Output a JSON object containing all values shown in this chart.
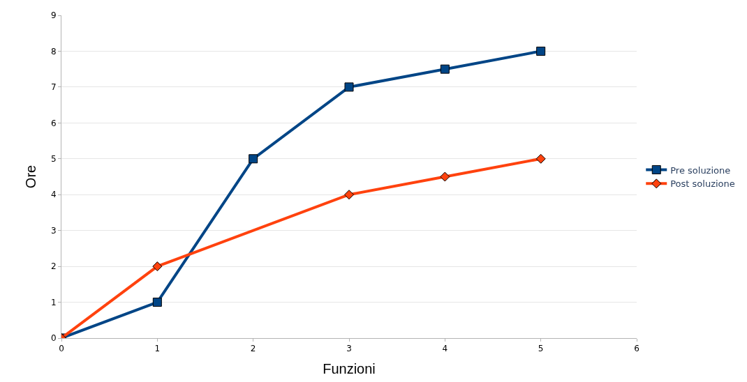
{
  "chart_data": {
    "type": "line",
    "xlabel": "Funzioni",
    "ylabel": "Ore",
    "xlim": [
      0,
      6
    ],
    "xticks": [
      0,
      1,
      2,
      3,
      4,
      5,
      6
    ],
    "ylim": [
      0,
      9
    ],
    "yticks": [
      0,
      1,
      2,
      3,
      4,
      5,
      6,
      7,
      8,
      9
    ],
    "grid": "y",
    "legend": "right",
    "line_style": "solid",
    "series": [
      {
        "name": "Pre soluzione",
        "color": "#004586",
        "marker": "square",
        "x": [
          0,
          1,
          2,
          3,
          4,
          5
        ],
        "values": [
          0,
          1,
          5,
          7,
          7.5,
          8
        ]
      },
      {
        "name": "Post soluzione",
        "color": "#ff420e",
        "marker": "diamond",
        "x": [
          0,
          1,
          3,
          4,
          5
        ],
        "values": [
          0,
          2,
          4,
          4.5,
          5
        ]
      }
    ]
  }
}
